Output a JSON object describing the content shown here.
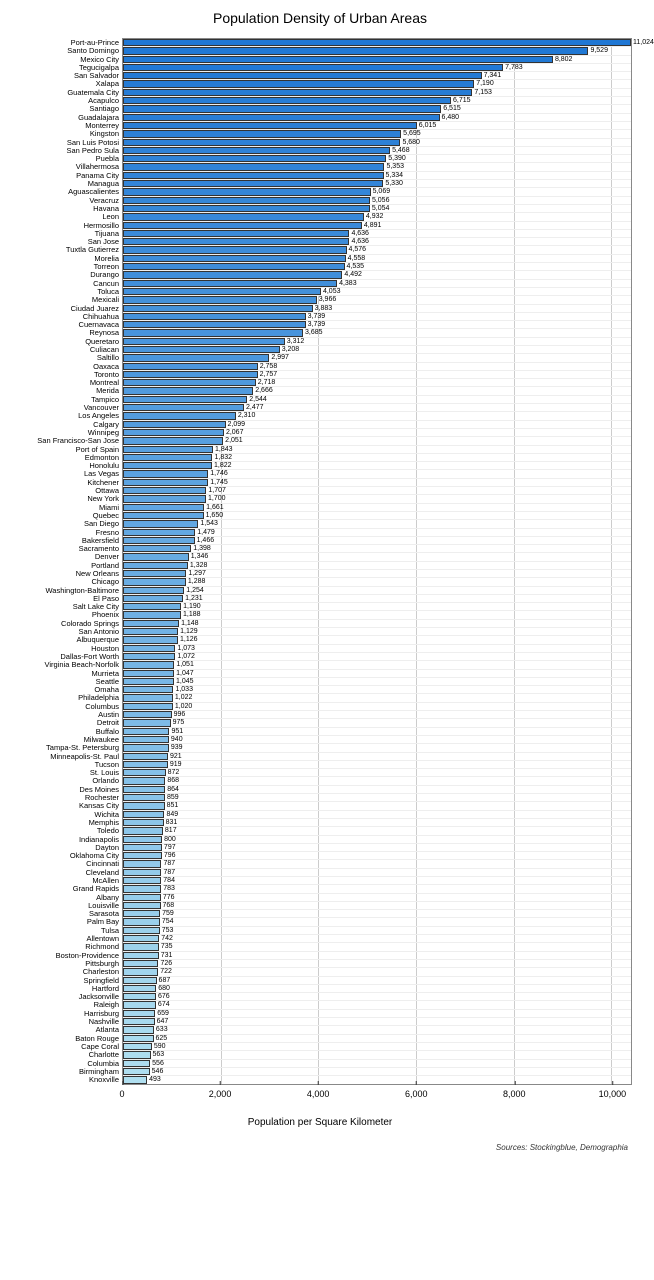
{
  "chart": {
    "title": "Population Density of Urban Areas",
    "xlabel": "Population per Square Kilometer",
    "sources": "Sources: Stockingblue, Demographia",
    "title_fontsize": 14,
    "xlim": [
      0,
      10400
    ],
    "xtick_step": 2000,
    "xticks": [
      0,
      2000,
      4000,
      6000,
      8000,
      10000
    ],
    "xticks_labels": [
      "0",
      "2,000",
      "4,000",
      "6,000",
      "8,000",
      "10,000"
    ],
    "grid_color": "#cccccc",
    "background_color": "#ffffff",
    "bar_border_color": "#333333",
    "label_fontsize": 7.5,
    "value_fontsize": 7,
    "type": "bar",
    "color_top": "#1f77d4",
    "color_bottom": "#b0dff0",
    "data": [
      {
        "name": "Port-au-Prince",
        "value": 11024,
        "label": "11,024"
      },
      {
        "name": "Santo Domingo",
        "value": 9529,
        "label": "9,529"
      },
      {
        "name": "Mexico City",
        "value": 8802,
        "label": "8,802"
      },
      {
        "name": "Tegucigalpa",
        "value": 7783,
        "label": "7,783"
      },
      {
        "name": "San Salvador",
        "value": 7341,
        "label": "7,341"
      },
      {
        "name": "Xalapa",
        "value": 7190,
        "label": "7,190"
      },
      {
        "name": "Guatemala City",
        "value": 7153,
        "label": "7,153"
      },
      {
        "name": "Acapulco",
        "value": 6715,
        "label": "6,715"
      },
      {
        "name": "Santiago",
        "value": 6515,
        "label": "6,515"
      },
      {
        "name": "Guadalajara",
        "value": 6480,
        "label": "6,480"
      },
      {
        "name": "Monterrey",
        "value": 6015,
        "label": "6,015"
      },
      {
        "name": "Kingston",
        "value": 5695,
        "label": "5,695"
      },
      {
        "name": "San Luis Potosi",
        "value": 5680,
        "label": "5,680"
      },
      {
        "name": "San Pedro Sula",
        "value": 5468,
        "label": "5,468"
      },
      {
        "name": "Puebla",
        "value": 5390,
        "label": "5,390"
      },
      {
        "name": "Villahermosa",
        "value": 5353,
        "label": "5,353"
      },
      {
        "name": "Panama City",
        "value": 5334,
        "label": "5,334"
      },
      {
        "name": "Managua",
        "value": 5330,
        "label": "5,330"
      },
      {
        "name": "Aguascalientes",
        "value": 5069,
        "label": "5,069"
      },
      {
        "name": "Veracruz",
        "value": 5056,
        "label": "5,056"
      },
      {
        "name": "Havana",
        "value": 5054,
        "label": "5,054"
      },
      {
        "name": "Leon",
        "value": 4932,
        "label": "4,932"
      },
      {
        "name": "Hermosillo",
        "value": 4891,
        "label": "4,891"
      },
      {
        "name": "Tijuana",
        "value": 4636,
        "label": "4,636"
      },
      {
        "name": "San Jose",
        "value": 4636,
        "label": "4,636"
      },
      {
        "name": "Tuxtla Gutierrez",
        "value": 4576,
        "label": "4,576"
      },
      {
        "name": "Morelia",
        "value": 4558,
        "label": "4,558"
      },
      {
        "name": "Torreon",
        "value": 4535,
        "label": "4,535"
      },
      {
        "name": "Durango",
        "value": 4492,
        "label": "4,492"
      },
      {
        "name": "Cancun",
        "value": 4383,
        "label": "4,383"
      },
      {
        "name": "Toluca",
        "value": 4053,
        "label": "4,053"
      },
      {
        "name": "Mexicali",
        "value": 3966,
        "label": "3,966"
      },
      {
        "name": "Ciudad Juarez",
        "value": 3883,
        "label": "3,883"
      },
      {
        "name": "Chihuahua",
        "value": 3739,
        "label": "3,739"
      },
      {
        "name": "Cuernavaca",
        "value": 3739,
        "label": "3,739"
      },
      {
        "name": "Reynosa",
        "value": 3685,
        "label": "3,685"
      },
      {
        "name": "Queretaro",
        "value": 3312,
        "label": "3,312"
      },
      {
        "name": "Culiacan",
        "value": 3208,
        "label": "3,208"
      },
      {
        "name": "Saltillo",
        "value": 2997,
        "label": "2,997"
      },
      {
        "name": "Oaxaca",
        "value": 2758,
        "label": "2,758"
      },
      {
        "name": "Toronto",
        "value": 2757,
        "label": "2,757"
      },
      {
        "name": "Montreal",
        "value": 2718,
        "label": "2,718"
      },
      {
        "name": "Merida",
        "value": 2666,
        "label": "2,666"
      },
      {
        "name": "Tampico",
        "value": 2544,
        "label": "2,544"
      },
      {
        "name": "Vancouver",
        "value": 2477,
        "label": "2,477"
      },
      {
        "name": "Los Angeles",
        "value": 2310,
        "label": "2,310"
      },
      {
        "name": "Calgary",
        "value": 2099,
        "label": "2,099"
      },
      {
        "name": "Winnipeg",
        "value": 2067,
        "label": "2,067"
      },
      {
        "name": "San Francisco-San Jose",
        "value": 2051,
        "label": "2,051"
      },
      {
        "name": "Port of Spain",
        "value": 1843,
        "label": "1,843"
      },
      {
        "name": "Edmonton",
        "value": 1832,
        "label": "1,832"
      },
      {
        "name": "Honolulu",
        "value": 1822,
        "label": "1,822"
      },
      {
        "name": "Las Vegas",
        "value": 1746,
        "label": "1,746"
      },
      {
        "name": "Kitchener",
        "value": 1745,
        "label": "1,745"
      },
      {
        "name": "Ottawa",
        "value": 1707,
        "label": "1,707"
      },
      {
        "name": "New York",
        "value": 1700,
        "label": "1,700"
      },
      {
        "name": "Miami",
        "value": 1661,
        "label": "1,661"
      },
      {
        "name": "Quebec",
        "value": 1650,
        "label": "1,650"
      },
      {
        "name": "San Diego",
        "value": 1543,
        "label": "1,543"
      },
      {
        "name": "Fresno",
        "value": 1479,
        "label": "1,479"
      },
      {
        "name": "Bakersfield",
        "value": 1466,
        "label": "1,466"
      },
      {
        "name": "Sacramento",
        "value": 1398,
        "label": "1,398"
      },
      {
        "name": "Denver",
        "value": 1346,
        "label": "1,346"
      },
      {
        "name": "Portland",
        "value": 1328,
        "label": "1,328"
      },
      {
        "name": "New Orleans",
        "value": 1297,
        "label": "1,297"
      },
      {
        "name": "Chicago",
        "value": 1288,
        "label": "1,288"
      },
      {
        "name": "Washington-Baltimore",
        "value": 1254,
        "label": "1,254"
      },
      {
        "name": "El Paso",
        "value": 1231,
        "label": "1,231"
      },
      {
        "name": "Salt Lake City",
        "value": 1190,
        "label": "1,190"
      },
      {
        "name": "Phoenix",
        "value": 1188,
        "label": "1,188"
      },
      {
        "name": "Colorado Springs",
        "value": 1148,
        "label": "1,148"
      },
      {
        "name": "San Antonio",
        "value": 1129,
        "label": "1,129"
      },
      {
        "name": "Albuquerque",
        "value": 1126,
        "label": "1,126"
      },
      {
        "name": "Houston",
        "value": 1073,
        "label": "1,073"
      },
      {
        "name": "Dallas-Fort Worth",
        "value": 1072,
        "label": "1,072"
      },
      {
        "name": "Virginia Beach-Norfolk",
        "value": 1051,
        "label": "1,051"
      },
      {
        "name": "Murrieta",
        "value": 1047,
        "label": "1,047"
      },
      {
        "name": "Seattle",
        "value": 1045,
        "label": "1,045"
      },
      {
        "name": "Omaha",
        "value": 1033,
        "label": "1,033"
      },
      {
        "name": "Philadelphia",
        "value": 1022,
        "label": "1,022"
      },
      {
        "name": "Columbus",
        "value": 1020,
        "label": "1,020"
      },
      {
        "name": "Austin",
        "value": 996,
        "label": "996"
      },
      {
        "name": "Detroit",
        "value": 975,
        "label": "975"
      },
      {
        "name": "Buffalo",
        "value": 951,
        "label": "951"
      },
      {
        "name": "Milwaukee",
        "value": 940,
        "label": "940"
      },
      {
        "name": "Tampa-St. Petersburg",
        "value": 939,
        "label": "939"
      },
      {
        "name": "Minneapolis-St. Paul",
        "value": 921,
        "label": "921"
      },
      {
        "name": "Tucson",
        "value": 919,
        "label": "919"
      },
      {
        "name": "St. Louis",
        "value": 872,
        "label": "872"
      },
      {
        "name": "Orlando",
        "value": 868,
        "label": "868"
      },
      {
        "name": "Des Moines",
        "value": 864,
        "label": "864"
      },
      {
        "name": "Rochester",
        "value": 859,
        "label": "859"
      },
      {
        "name": "Kansas City",
        "value": 851,
        "label": "851"
      },
      {
        "name": "Wichita",
        "value": 849,
        "label": "849"
      },
      {
        "name": "Memphis",
        "value": 831,
        "label": "831"
      },
      {
        "name": "Toledo",
        "value": 817,
        "label": "817"
      },
      {
        "name": "Indianapolis",
        "value": 800,
        "label": "800"
      },
      {
        "name": "Dayton",
        "value": 797,
        "label": "797"
      },
      {
        "name": "Oklahoma City",
        "value": 796,
        "label": "796"
      },
      {
        "name": "Cincinnati",
        "value": 787,
        "label": "787"
      },
      {
        "name": "Cleveland",
        "value": 787,
        "label": "787"
      },
      {
        "name": "McAllen",
        "value": 784,
        "label": "784"
      },
      {
        "name": "Grand Rapids",
        "value": 783,
        "label": "783"
      },
      {
        "name": "Albany",
        "value": 776,
        "label": "776"
      },
      {
        "name": "Louisville",
        "value": 768,
        "label": "768"
      },
      {
        "name": "Sarasota",
        "value": 759,
        "label": "759"
      },
      {
        "name": "Palm Bay",
        "value": 754,
        "label": "754"
      },
      {
        "name": "Tulsa",
        "value": 753,
        "label": "753"
      },
      {
        "name": "Allentown",
        "value": 742,
        "label": "742"
      },
      {
        "name": "Richmond",
        "value": 735,
        "label": "735"
      },
      {
        "name": "Boston-Providence",
        "value": 731,
        "label": "731"
      },
      {
        "name": "Pittsburgh",
        "value": 726,
        "label": "726"
      },
      {
        "name": "Charleston",
        "value": 722,
        "label": "722"
      },
      {
        "name": "Springfield",
        "value": 687,
        "label": "687"
      },
      {
        "name": "Hartford",
        "value": 680,
        "label": "680"
      },
      {
        "name": "Jacksonville",
        "value": 676,
        "label": "676"
      },
      {
        "name": "Raleigh",
        "value": 674,
        "label": "674"
      },
      {
        "name": "Harrisburg",
        "value": 659,
        "label": "659"
      },
      {
        "name": "Nashville",
        "value": 647,
        "label": "647"
      },
      {
        "name": "Atlanta",
        "value": 633,
        "label": "633"
      },
      {
        "name": "Baton Rouge",
        "value": 625,
        "label": "625"
      },
      {
        "name": "Cape Coral",
        "value": 590,
        "label": "590"
      },
      {
        "name": "Charlotte",
        "value": 563,
        "label": "563"
      },
      {
        "name": "Columbia",
        "value": 556,
        "label": "556"
      },
      {
        "name": "Birmingham",
        "value": 546,
        "label": "546"
      },
      {
        "name": "Knoxville",
        "value": 493,
        "label": "493"
      }
    ]
  }
}
